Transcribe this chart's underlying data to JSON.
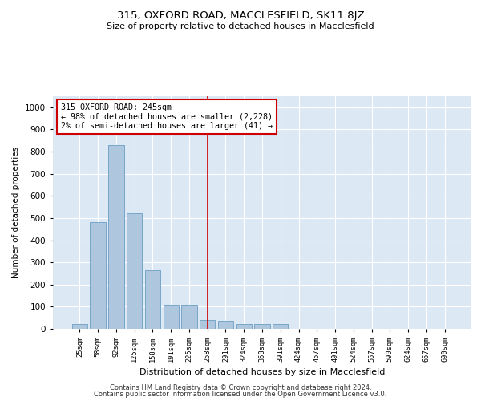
{
  "title": "315, OXFORD ROAD, MACCLESFIELD, SK11 8JZ",
  "subtitle": "Size of property relative to detached houses in Macclesfield",
  "xlabel": "Distribution of detached houses by size in Macclesfield",
  "ylabel": "Number of detached properties",
  "footnote1": "Contains HM Land Registry data © Crown copyright and database right 2024.",
  "footnote2": "Contains public sector information licensed under the Open Government Licence v3.0.",
  "annotation_title": "315 OXFORD ROAD: 245sqm",
  "annotation_line1": "← 98% of detached houses are smaller (2,228)",
  "annotation_line2": "2% of semi-detached houses are larger (41) →",
  "bar_color": "#aec6de",
  "bar_edge_color": "#6b9fc4",
  "vline_color": "#cc0000",
  "vline_x": 7,
  "background_color": "#dde8f5",
  "ylim": [
    0,
    1050
  ],
  "yticks": [
    0,
    100,
    200,
    300,
    400,
    500,
    600,
    700,
    800,
    900,
    1000
  ],
  "bins": [
    "25sqm",
    "58sqm",
    "92sqm",
    "125sqm",
    "158sqm",
    "191sqm",
    "225sqm",
    "258sqm",
    "291sqm",
    "324sqm",
    "358sqm",
    "391sqm",
    "424sqm",
    "457sqm",
    "491sqm",
    "524sqm",
    "557sqm",
    "590sqm",
    "624sqm",
    "657sqm",
    "690sqm"
  ],
  "values": [
    20,
    480,
    830,
    520,
    265,
    110,
    110,
    40,
    35,
    20,
    20,
    20,
    0,
    0,
    0,
    0,
    0,
    0,
    0,
    0,
    0
  ],
  "fig_width": 6.0,
  "fig_height": 5.0,
  "dpi": 100
}
